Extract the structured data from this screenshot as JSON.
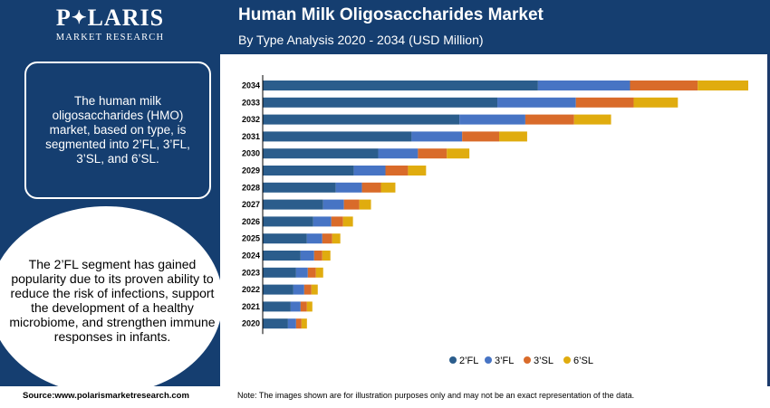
{
  "header": {
    "logo_name": "POLARIS",
    "logo_star": "✦",
    "logo_sub": "MARKET RESEARCH",
    "title": "Human Milk Oligosaccharides Market",
    "subtitle": "By Type Analysis 2020 - 2034 (USD Million)"
  },
  "sidebar": {
    "info_text": "The human milk oligosaccharides (HMO) market, based on type, is segmented into 2’FL, 3’FL, 3’SL, and 6’SL.",
    "highlight_text": "The 2’FL segment has gained popularity due to its proven ability to reduce the risk of infections, support the development of a healthy microbiome, and strengthen immune responses in infants."
  },
  "footer": {
    "source": "Source:www.polarismarketresearch.com",
    "note": "Note: The images shown are for illustration purposes only and may not be an exact representation of the data."
  },
  "colors": {
    "brand": "#153e70",
    "2FL": "#2b5d8c",
    "3FL": "#4774c4",
    "3SL": "#d96b2a",
    "6SL": "#e0ac0f"
  },
  "chart_data": {
    "type": "bar",
    "orientation": "horizontal",
    "stacked": true,
    "categories": [
      "2034",
      "2033",
      "2032",
      "2031",
      "2030",
      "2029",
      "2028",
      "2027",
      "2026",
      "2025",
      "2024",
      "2023",
      "2022",
      "2021",
      "2020"
    ],
    "series": [
      {
        "name": "2’FL",
        "color": "#2b5d8c",
        "values": [
          305,
          260,
          218,
          165,
          128,
          101,
          81,
          67,
          56,
          49,
          42,
          37,
          34,
          31,
          28
        ]
      },
      {
        "name": "3’FL",
        "color": "#4774c4",
        "values": [
          102,
          87,
          73,
          56,
          44,
          35,
          29,
          23,
          20,
          17,
          15,
          13,
          12,
          11,
          9
        ]
      },
      {
        "name": "3’SL",
        "color": "#d96b2a",
        "values": [
          75,
          64,
          54,
          41,
          32,
          25,
          21,
          17,
          13,
          11,
          9,
          9,
          8,
          7,
          6
        ]
      },
      {
        "name": "6’SL",
        "color": "#e0ac0f",
        "values": [
          56,
          49,
          41,
          31,
          25,
          20,
          16,
          13,
          11,
          9,
          9,
          8,
          7,
          6,
          6
        ]
      }
    ],
    "legend_position": "bottom-right",
    "grid": false,
    "xlim": [
      0,
      540
    ]
  }
}
